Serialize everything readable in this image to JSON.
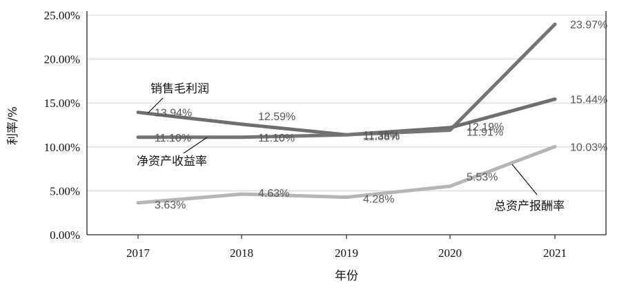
{
  "chart_data": {
    "type": "line",
    "title": "",
    "xlabel": "年份",
    "ylabel": "利率/%",
    "categories": [
      "2017",
      "2018",
      "2019",
      "2020",
      "2021"
    ],
    "ylim": [
      0,
      25
    ],
    "yticks": [
      0,
      5,
      10,
      15,
      20,
      25
    ],
    "ytick_labels": [
      "0.00%",
      "5.00%",
      "10.00%",
      "15.00%",
      "20.00%",
      "25.00%"
    ],
    "grid": true,
    "series": [
      {
        "name": "销售毛利润",
        "values": [
          13.94,
          12.59,
          11.38,
          12.19,
          15.44
        ],
        "labels": [
          "13.94%",
          "12.59%",
          "11.38%",
          "12.19%",
          "15.44%"
        ],
        "color": "#6e6e6e"
      },
      {
        "name": "净资产收益率",
        "values": [
          11.1,
          11.1,
          11.38,
          11.91,
          23.97
        ],
        "labels": [
          "11.10%",
          "11.10%",
          "11.38%",
          "11.91%",
          "23.97%"
        ],
        "color": "#747474"
      },
      {
        "name": "总资产报酬率",
        "values": [
          3.63,
          4.63,
          4.28,
          5.53,
          10.03
        ],
        "labels": [
          "3.63%",
          "4.63%",
          "4.28%",
          "5.53%",
          "10.03%"
        ],
        "color": "#b5b5b5"
      }
    ]
  }
}
